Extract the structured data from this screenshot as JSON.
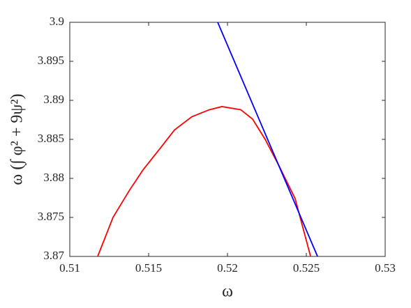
{
  "chart_data": {
    "type": "line",
    "xlabel": "ω",
    "ylabel": "ω (∫ φ² + 9ψ²)",
    "xlim": [
      0.51,
      0.53
    ],
    "xticks": [
      0.51,
      0.515,
      0.52,
      0.525,
      0.53
    ],
    "ylim": [
      3.87,
      3.9
    ],
    "yticks": [
      3.87,
      3.875,
      3.88,
      3.885,
      3.89,
      3.895,
      3.9
    ],
    "series": [
      {
        "name": "red",
        "color": "#ff0000",
        "x": [
          0.51177,
          0.51274,
          0.51376,
          0.51465,
          0.51575,
          0.51664,
          0.51774,
          0.51885,
          0.51965,
          0.52084,
          0.52159,
          0.52239,
          0.52327,
          0.52429,
          0.52527
        ],
        "values": [
          3.87,
          3.875,
          3.8784,
          3.8811,
          3.8839,
          3.8862,
          3.8879,
          3.8888,
          3.8892,
          3.8888,
          3.8876,
          3.885,
          3.8816,
          3.8774,
          3.87
        ]
      },
      {
        "name": "blue",
        "color": "#0000ff",
        "x": [
          0.51938,
          0.52571
        ],
        "values": [
          3.9,
          3.87
        ]
      }
    ]
  }
}
